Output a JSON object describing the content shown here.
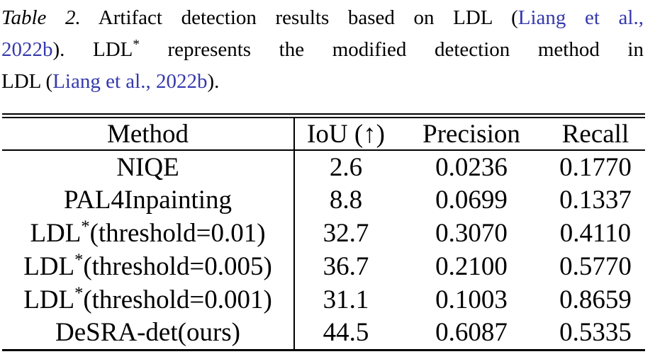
{
  "colors": {
    "citation": "#3539ac",
    "text": "#000000",
    "rule": "#000000",
    "background": "#ffffff"
  },
  "caption": {
    "line1": {
      "label": "Table 2.",
      "text": " Artifact detection results based on LDL (",
      "cite": "Liang et al.,"
    },
    "line2": {
      "cite": "2022b",
      "post": "). ",
      "ldl": "LDL",
      "sup": "*",
      "rest": " represents the modified detection method in"
    },
    "line3": {
      "pre": "LDL (",
      "cite": "Liang et al., 2022b",
      "post": ")."
    }
  },
  "table": {
    "headers": {
      "method": "Method",
      "iou": "IoU (↑)",
      "precision": "Precision",
      "recall": "Recall"
    },
    "rows": [
      {
        "method_pre": "NIQE",
        "method_sup": "",
        "method_rest": "",
        "iou": "2.6",
        "precision": "0.0236",
        "recall": "0.1770"
      },
      {
        "method_pre": "PAL4Inpainting",
        "method_sup": "",
        "method_rest": "",
        "iou": "8.8",
        "precision": "0.0699",
        "recall": "0.1337"
      },
      {
        "method_pre": "LDL",
        "method_sup": "*",
        "method_rest": "(threshold=0.01)",
        "iou": "32.7",
        "precision": "0.3070",
        "recall": "0.4110"
      },
      {
        "method_pre": "LDL",
        "method_sup": "*",
        "method_rest": "(threshold=0.005)",
        "iou": "36.7",
        "precision": "0.2100",
        "recall": "0.5770"
      },
      {
        "method_pre": "LDL",
        "method_sup": "*",
        "method_rest": "(threshold=0.001)",
        "iou": "31.1",
        "precision": "0.1003",
        "recall": "0.8659"
      },
      {
        "method_pre": "DeSRA-det(ours)",
        "method_sup": "",
        "method_rest": "",
        "iou": "44.5",
        "precision": "0.6087",
        "recall": "0.5335"
      }
    ]
  }
}
